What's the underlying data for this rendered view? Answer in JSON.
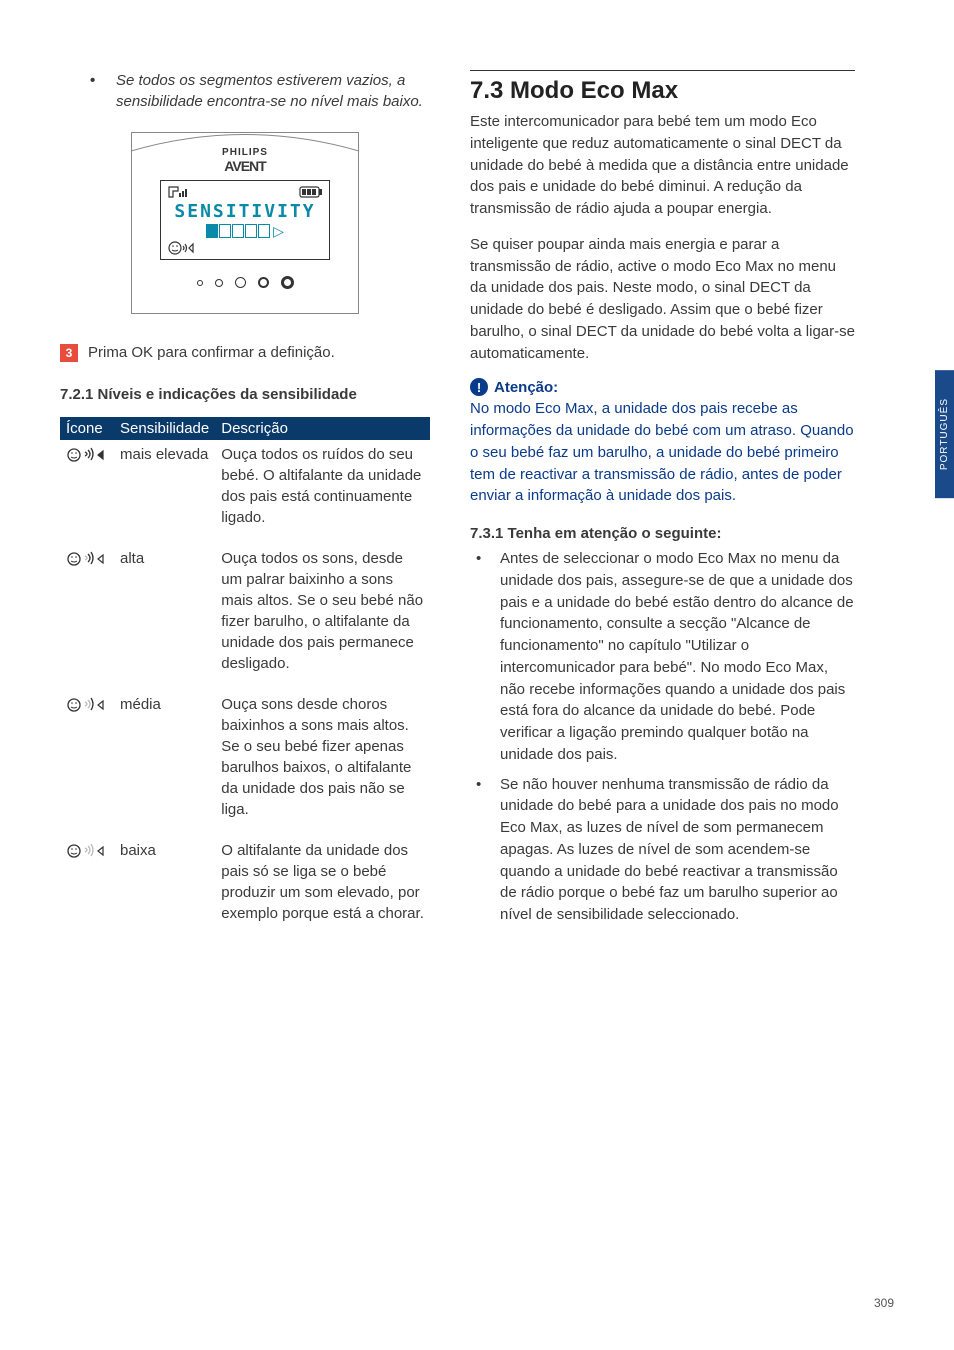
{
  "left": {
    "note_bullet": "•",
    "note_text": "Se todos os segmentos estiverem vazios, a sensibilidade encontra-se no nível mais baixo.",
    "device": {
      "brand": "PHILIPS",
      "sub": "AVENT",
      "screen_word": "SENSITIVITY",
      "segments_total": 5,
      "segments_filled": 1,
      "dot_sizes": [
        6,
        8,
        11,
        11,
        13
      ],
      "dot_thick": [
        1,
        1,
        1.5,
        2,
        3
      ]
    },
    "step_number": "3",
    "step_text": "Prima OK para confirmar a definição.",
    "subsection": "7.2.1 Níveis e indicações da sensibilidade",
    "table": {
      "headers": [
        "Ícone",
        "Sensibilidade",
        "Descrição"
      ],
      "rows": [
        {
          "fill": 4,
          "level": "mais elevada",
          "desc": "Ouça todos os ruídos do seu bebé. O altifalante da unidade dos pais está continuamente ligado."
        },
        {
          "fill": 3,
          "level": "alta",
          "desc": "Ouça todos os sons, desde um palrar baixinho a sons mais altos. Se o seu bebé não fizer barulho, o altifalante da unidade dos pais permanece desligado."
        },
        {
          "fill": 2,
          "level": "média",
          "desc": "Ouça sons desde choros baixinhos a sons mais altos. Se o seu bebé fizer apenas barulhos baixos, o altifalante da unidade dos pais não se liga."
        },
        {
          "fill": 1,
          "level": "baixa",
          "desc": "O altifalante da unidade dos pais só se liga se o bebé produzir um som elevado, por exemplo porque está a chorar."
        }
      ]
    }
  },
  "right": {
    "title": "7.3  Modo Eco Max",
    "para1": "Este intercomunicador para bebé tem um modo Eco inteligente que reduz automaticamente o sinal DECT da unidade do bebé à medida que a distância entre unidade dos pais e unidade do bebé diminui. A redução da transmissão de rádio ajuda a poupar energia.",
    "para2": "Se quiser poupar ainda mais energia e parar a transmissão de rádio, active o modo Eco Max no menu da unidade dos pais. Neste modo, o sinal DECT da unidade do bebé é desligado. Assim que o bebé fizer barulho, o sinal DECT da unidade do bebé volta a ligar-se automaticamente.",
    "warning_label": "Atenção:",
    "warning_text": "No modo Eco Max, a unidade dos pais recebe as informações da unidade do bebé com um atraso. Quando o seu bebé faz um barulho, a unidade do bebé primeiro tem de reactivar a transmissão de rádio, antes de poder enviar a informação à unidade dos pais.",
    "sub731": "7.3.1 Tenha em atenção o seguinte:",
    "bullets": [
      "Antes de seleccionar o modo Eco Max no menu da unidade dos pais, assegure-se de que a unidade dos pais e a unidade do bebé estão dentro do alcance de funcionamento, consulte a secção \"Alcance de funcionamento\" no capítulo \"Utilizar o intercomunicador para bebé\". No modo Eco Max, não recebe informações quando a unidade dos pais está fora do alcance da unidade do bebé. Pode verificar a ligação premindo qualquer botão na unidade dos pais.",
      "Se não houver nenhuma transmissão de rádio da unidade do bebé para a unidade dos pais no modo Eco Max, as luzes de nível de som permanecem apagas. As luzes de nível de som acendem-se quando a unidade do bebé reactivar a transmissão de rádio porque o bebé faz um barulho superior ao nível de sensibilidade seleccionado."
    ]
  },
  "side_tab": "PORTUGUÊS",
  "page_number": "309",
  "colors": {
    "header_bg": "#0a3a6a",
    "warning": "#0a3a8a",
    "step_bg": "#e74c3c",
    "screen_accent": "#0a8aa8"
  }
}
